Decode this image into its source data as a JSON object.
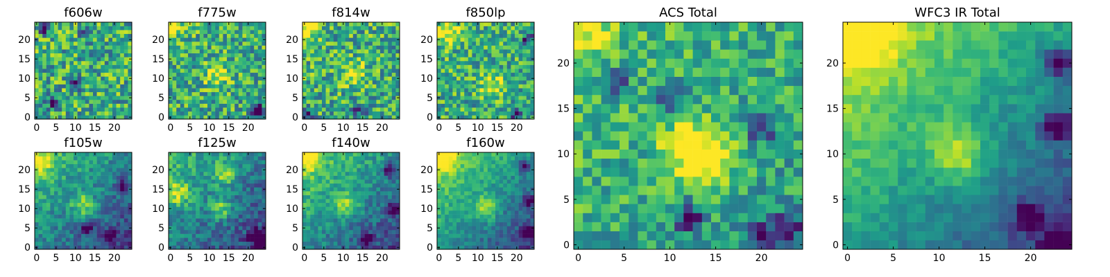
{
  "chart_data": [
    {
      "type": "heatmap",
      "id": "f606w",
      "title": "f606w",
      "xlim": [
        0,
        24
      ],
      "ylim": [
        0,
        24
      ],
      "xticks": [
        0,
        5,
        10,
        15,
        20
      ],
      "yticks": [
        0,
        5,
        10,
        15,
        20
      ],
      "pattern": "noise",
      "trend": 0.02,
      "noise": 0.62,
      "seed": 11,
      "hotspots": [],
      "darkspots": [
        [
          2,
          23
        ],
        [
          13,
          22
        ],
        [
          4,
          4
        ],
        [
          10,
          9
        ]
      ]
    },
    {
      "type": "heatmap",
      "id": "f775w",
      "title": "f775w",
      "xlim": [
        0,
        24
      ],
      "ylim": [
        0,
        24
      ],
      "xticks": [
        0,
        5,
        10,
        15,
        20
      ],
      "yticks": [
        0,
        5,
        10,
        15,
        20
      ],
      "pattern": "noise",
      "trend": 0.05,
      "noise": 0.58,
      "seed": 23,
      "hotspots": [
        [
          0,
          24
        ],
        [
          12,
          11
        ]
      ],
      "darkspots": [
        [
          22,
          2
        ],
        [
          23,
          1
        ]
      ]
    },
    {
      "type": "heatmap",
      "id": "f814w",
      "title": "f814w",
      "xlim": [
        0,
        24
      ],
      "ylim": [
        0,
        24
      ],
      "xticks": [
        0,
        5,
        10,
        15,
        20
      ],
      "yticks": [
        0,
        5,
        10,
        15,
        20
      ],
      "pattern": "noise",
      "trend": 0.06,
      "noise": 0.6,
      "seed": 37,
      "hotspots": [
        [
          1,
          23
        ],
        [
          13,
          11
        ]
      ],
      "darkspots": [
        [
          14,
          2
        ],
        [
          1,
          1
        ]
      ]
    },
    {
      "type": "heatmap",
      "id": "f850lp",
      "title": "f850lp",
      "xlim": [
        0,
        24
      ],
      "ylim": [
        0,
        24
      ],
      "xticks": [
        0,
        5,
        10,
        15,
        20
      ],
      "yticks": [
        0,
        5,
        10,
        15,
        20
      ],
      "pattern": "noise",
      "trend": 0.08,
      "noise": 0.55,
      "seed": 41,
      "hotspots": [
        [
          14,
          8
        ],
        [
          2,
          22
        ]
      ],
      "darkspots": [
        [
          20,
          1
        ],
        [
          23,
          20
        ]
      ]
    },
    {
      "type": "heatmap",
      "id": "f105w",
      "title": "f105w",
      "xlim": [
        0,
        24
      ],
      "ylim": [
        0,
        24
      ],
      "xticks": [
        0,
        5,
        10,
        15,
        20
      ],
      "yticks": [
        0,
        5,
        10,
        15,
        20
      ],
      "pattern": "gradient",
      "trend": 0.55,
      "noise": 0.32,
      "seed": 53,
      "hotspots": [
        [
          1,
          22
        ],
        [
          12,
          11
        ]
      ],
      "darkspots": [
        [
          13,
          5
        ],
        [
          22,
          16
        ],
        [
          19,
          3
        ]
      ]
    },
    {
      "type": "heatmap",
      "id": "f125w",
      "title": "f125w",
      "xlim": [
        0,
        24
      ],
      "ylim": [
        0,
        24
      ],
      "xticks": [
        0,
        5,
        10,
        15,
        20
      ],
      "yticks": [
        0,
        5,
        10,
        15,
        20
      ],
      "pattern": "gradient",
      "trend": 0.5,
      "noise": 0.34,
      "seed": 67,
      "hotspots": [
        [
          2,
          14
        ],
        [
          13,
          10
        ],
        [
          14,
          19
        ]
      ],
      "darkspots": [
        [
          22,
          3
        ],
        [
          23,
          2
        ]
      ]
    },
    {
      "type": "heatmap",
      "id": "f140w",
      "title": "f140w",
      "xlim": [
        0,
        24
      ],
      "ylim": [
        0,
        24
      ],
      "xticks": [
        0,
        5,
        10,
        15,
        20
      ],
      "yticks": [
        0,
        5,
        10,
        15,
        20
      ],
      "pattern": "gradient",
      "trend": 0.62,
      "noise": 0.3,
      "seed": 79,
      "hotspots": [
        [
          1,
          23
        ],
        [
          11,
          11
        ]
      ],
      "darkspots": [
        [
          16,
          2
        ],
        [
          23,
          10
        ],
        [
          22,
          20
        ]
      ]
    },
    {
      "type": "heatmap",
      "id": "f160w",
      "title": "f160w",
      "xlim": [
        0,
        24
      ],
      "ylim": [
        0,
        24
      ],
      "xticks": [
        0,
        5,
        10,
        15,
        20
      ],
      "yticks": [
        0,
        5,
        10,
        15,
        20
      ],
      "pattern": "gradient",
      "trend": 0.68,
      "noise": 0.24,
      "seed": 83,
      "hotspots": [
        [
          1,
          23
        ],
        [
          12,
          10
        ]
      ],
      "darkspots": [
        [
          23,
          4
        ],
        [
          23,
          12
        ],
        [
          22,
          21
        ]
      ]
    },
    {
      "type": "heatmap",
      "id": "acs_total",
      "title": "ACS Total",
      "xlim": [
        0,
        24
      ],
      "ylim": [
        0,
        24
      ],
      "xticks": [
        0,
        5,
        10,
        15,
        20
      ],
      "yticks": [
        0,
        5,
        10,
        15,
        20
      ],
      "pattern": "noise",
      "trend": 0.18,
      "noise": 0.42,
      "seed": 97,
      "hotspots": [
        [
          0,
          24
        ],
        [
          12,
          11
        ],
        [
          14,
          9
        ]
      ],
      "darkspots": [
        [
          4,
          18
        ],
        [
          10,
          16
        ],
        [
          20,
          13
        ],
        [
          12,
          3
        ],
        [
          20,
          1
        ],
        [
          23,
          2
        ]
      ]
    },
    {
      "type": "heatmap",
      "id": "wfc3_ir_total",
      "title": "WFC3 IR Total",
      "xlim": [
        0,
        24
      ],
      "ylim": [
        0,
        24
      ],
      "xticks": [
        0,
        5,
        10,
        15,
        20
      ],
      "yticks": [
        0,
        5,
        10,
        15,
        20
      ],
      "pattern": "gradient",
      "trend": 0.78,
      "noise": 0.18,
      "seed": 101,
      "hotspots": [
        [
          2,
          23
        ],
        [
          12,
          10
        ]
      ],
      "darkspots": [
        [
          23,
          13
        ],
        [
          23,
          20
        ],
        [
          20,
          3
        ],
        [
          23,
          0
        ]
      ]
    }
  ]
}
